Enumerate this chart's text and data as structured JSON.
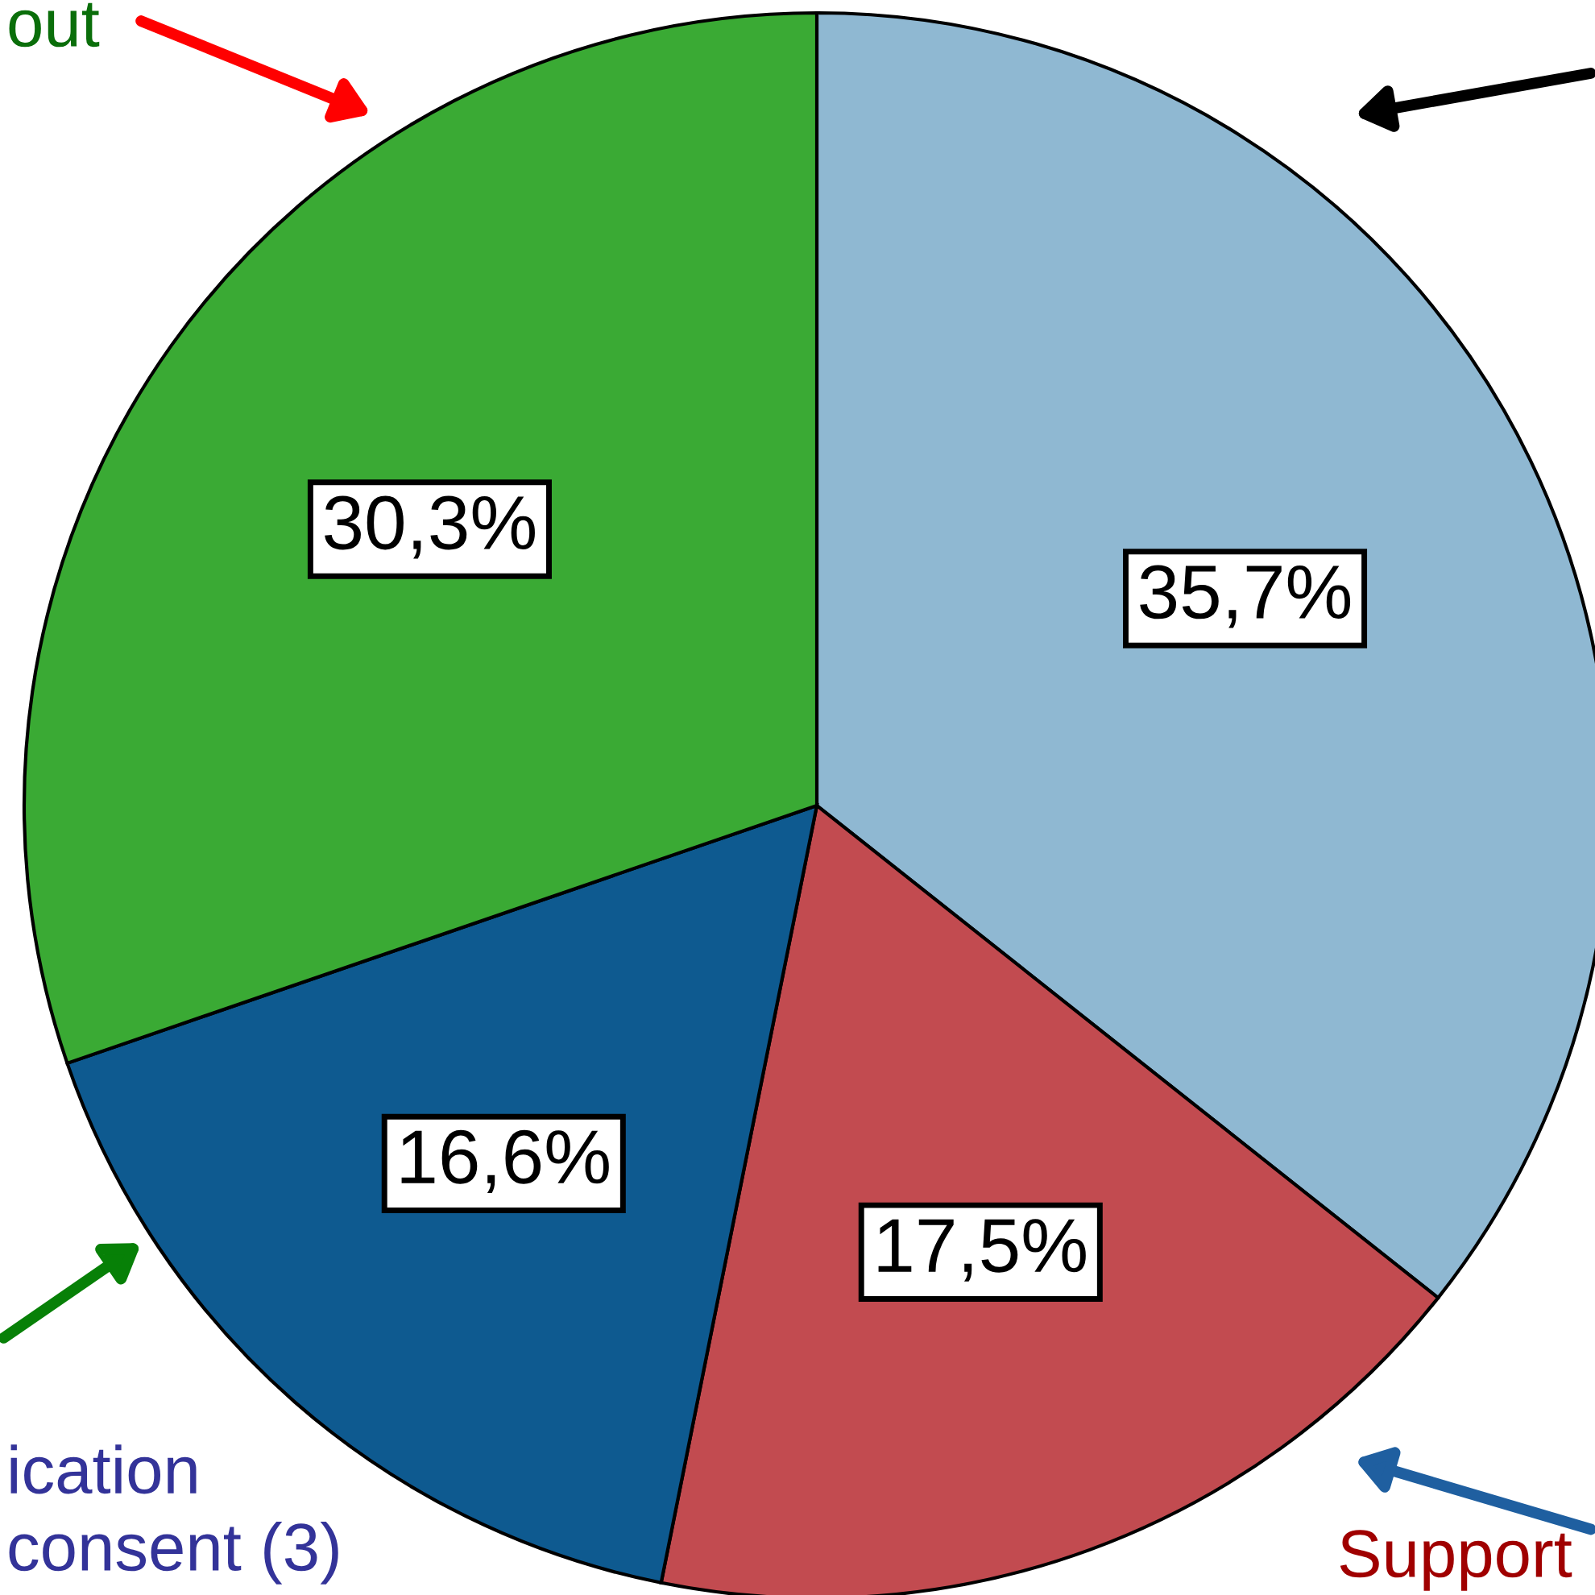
{
  "chart_data": {
    "type": "pie",
    "categories": [
      null,
      "Support",
      "ication\nconsent (3)",
      "out"
    ],
    "values": [
      35.7,
      17.5,
      16.6,
      30.3
    ],
    "colors": [
      "#8fb8d2",
      "#c24b50",
      "#0e5a90",
      "#3aaa34"
    ],
    "value_labels": [
      "35,7%",
      "17,5%",
      "16,6%",
      "30,3%"
    ]
  }
}
